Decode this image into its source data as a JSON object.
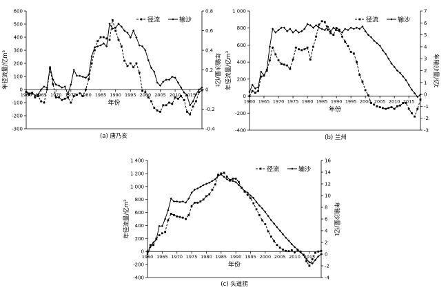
{
  "chart_data": [
    {
      "type": "line",
      "caption": "(a) 唐乃亥",
      "xlabel": "年份",
      "ylabel_left": "年径流量/亿m³",
      "ylabel_right": "年输沙量/亿t",
      "x_ticks": [
        "1960",
        "1965",
        "1970",
        "1975",
        "1980",
        "1985",
        "1990",
        "1995",
        "2000",
        "2005",
        "2010",
        "2015"
      ],
      "x_range": [
        1960,
        2019
      ],
      "ylim_left": [
        -300,
        600
      ],
      "yticks_left": [
        "-300",
        "-200",
        "-100",
        "0",
        "100",
        "200",
        "300",
        "400",
        "500",
        "600"
      ],
      "ylim_right": [
        -0.4,
        0.8
      ],
      "yticks_right": [
        "-0.4",
        "-0.2",
        "0",
        "0.2",
        "0.4",
        "0.6",
        "0.8"
      ],
      "legend": [
        "径流",
        "输沙"
      ],
      "legend_position": "top-right",
      "series": [
        {
          "name": "径流",
          "axis": "left",
          "style": "dashed-square",
          "x": [
            1960,
            1961,
            1962,
            1963,
            1964,
            1965,
            1966,
            1967,
            1968,
            1969,
            1970,
            1971,
            1972,
            1973,
            1974,
            1975,
            1976,
            1977,
            1978,
            1979,
            1980,
            1981,
            1982,
            1983,
            1984,
            1985,
            1986,
            1987,
            1988,
            1989,
            1990,
            1991,
            1992,
            1993,
            1994,
            1995,
            1996,
            1997,
            1998,
            1999,
            2000,
            2001,
            2002,
            2003,
            2004,
            2005,
            2006,
            2007,
            2008,
            2009,
            2010,
            2011,
            2012,
            2013,
            2014,
            2015,
            2016,
            2017,
            2018,
            2019
          ],
          "y": [
            -20,
            -40,
            -30,
            -60,
            -50,
            -90,
            -100,
            0,
            160,
            40,
            -60,
            -60,
            -80,
            -70,
            -60,
            -100,
            -50,
            -40,
            -30,
            -50,
            0,
            80,
            200,
            300,
            370,
            400,
            400,
            390,
            380,
            530,
            450,
            380,
            330,
            220,
            180,
            200,
            170,
            200,
            130,
            -10,
            -20,
            -60,
            -90,
            -140,
            -160,
            -170,
            -120,
            -120,
            -100,
            -110,
            -60,
            -70,
            -50,
            -80,
            -170,
            -190,
            -130,
            -90,
            -20,
            -5
          ]
        },
        {
          "name": "输沙",
          "axis": "right",
          "style": "solid-diamond",
          "x": [
            1960,
            1961,
            1962,
            1963,
            1964,
            1965,
            1966,
            1967,
            1968,
            1969,
            1970,
            1971,
            1972,
            1973,
            1974,
            1975,
            1976,
            1977,
            1978,
            1979,
            1980,
            1981,
            1982,
            1983,
            1984,
            1985,
            1986,
            1987,
            1988,
            1989,
            1990,
            1991,
            1992,
            1993,
            1994,
            1995,
            1996,
            1997,
            1998,
            1999,
            2000,
            2001,
            2002,
            2003,
            2004,
            2005,
            2006,
            2007,
            2008,
            2009,
            2010,
            2011,
            2012,
            2013,
            2014,
            2015,
            2016,
            2017,
            2018,
            2019
          ],
          "y": [
            -0.02,
            -0.04,
            -0.03,
            -0.06,
            -0.05,
            0,
            0.03,
            0.02,
            0.23,
            0.1,
            0.05,
            0.04,
            0.02,
            0.03,
            -0.05,
            0.05,
            0.2,
            0.14,
            0.14,
            0.13,
            0.12,
            0.15,
            0.34,
            0.43,
            0.44,
            0.45,
            0.47,
            0.44,
            0.67,
            0.62,
            0.63,
            0.67,
            0.64,
            0.6,
            0.58,
            0.53,
            0.6,
            0.53,
            0.45,
            0.44,
            0.4,
            0.3,
            0.22,
            0.18,
            0.07,
            0.04,
            0.08,
            0.1,
            0.1,
            0.13,
            0.12,
            0.07,
            0.02,
            -0.03,
            -0.06,
            -0.16,
            -0.12,
            -0.05,
            0,
            0.02
          ]
        }
      ]
    },
    {
      "type": "line",
      "caption": "(b) 兰州",
      "xlabel": "年份",
      "ylabel_left": "年径流量/亿m³",
      "ylabel_right": "年输沙量/亿t",
      "x_ticks": [
        "1960",
        "1965",
        "1970",
        "1975",
        "1980",
        "1985",
        "1990",
        "1995",
        "2000",
        "2005",
        "2010",
        "2015"
      ],
      "x_range": [
        1960,
        2019
      ],
      "ylim_left": [
        -400,
        1000
      ],
      "yticks_left": [
        "-400",
        "-200",
        "0",
        "200",
        "400",
        "600",
        "800",
        "1 000"
      ],
      "ylim_right": [
        -3,
        7
      ],
      "yticks_right": [
        "-3",
        "-2",
        "-1",
        "0",
        "1",
        "2",
        "3",
        "4",
        "5",
        "6",
        "7"
      ],
      "legend": [
        "径流",
        "输沙"
      ],
      "legend_position": "top-right",
      "series": [
        {
          "name": "径流",
          "axis": "left",
          "style": "dashed-square",
          "x": [
            1960,
            1961,
            1962,
            1963,
            1964,
            1965,
            1966,
            1967,
            1968,
            1969,
            1970,
            1971,
            1972,
            1973,
            1974,
            1975,
            1976,
            1977,
            1978,
            1979,
            1980,
            1981,
            1982,
            1983,
            1984,
            1985,
            1986,
            1987,
            1988,
            1989,
            1990,
            1991,
            1992,
            1993,
            1994,
            1995,
            1996,
            1997,
            1998,
            1999,
            2000,
            2001,
            2002,
            2003,
            2004,
            2005,
            2006,
            2007,
            2008,
            2009,
            2010,
            2011,
            2012,
            2013,
            2014,
            2015,
            2016,
            2017,
            2018,
            2019
          ],
          "y": [
            0,
            60,
            40,
            60,
            230,
            240,
            300,
            420,
            570,
            490,
            420,
            380,
            370,
            360,
            320,
            430,
            570,
            550,
            540,
            550,
            570,
            430,
            580,
            700,
            840,
            880,
            870,
            780,
            740,
            720,
            800,
            780,
            700,
            640,
            590,
            520,
            500,
            400,
            250,
            170,
            70,
            10,
            -80,
            -100,
            -120,
            -130,
            -140,
            -150,
            -140,
            -130,
            -150,
            -120,
            -110,
            -80,
            -80,
            -150,
            -200,
            -240,
            -150,
            -40
          ]
        },
        {
          "name": "输沙",
          "axis": "right",
          "style": "solid-diamond",
          "x": [
            1960,
            1961,
            1962,
            1963,
            1964,
            1965,
            1966,
            1967,
            1968,
            1969,
            1970,
            1971,
            1972,
            1973,
            1974,
            1975,
            1976,
            1977,
            1978,
            1979,
            1980,
            1981,
            1982,
            1983,
            1984,
            1985,
            1986,
            1987,
            1988,
            1989,
            1990,
            1991,
            1992,
            1993,
            1994,
            1995,
            1996,
            1997,
            1998,
            1999,
            2000,
            2001,
            2002,
            2003,
            2004,
            2005,
            2006,
            2007,
            2008,
            2009,
            2010,
            2011,
            2012,
            2013,
            2014,
            2015,
            2016,
            2017,
            2018,
            2019
          ],
          "y": [
            0.2,
            0.8,
            0.5,
            0.6,
            1.9,
            1.6,
            2.1,
            4.0,
            5.5,
            5.2,
            5.4,
            5.6,
            5.6,
            5.3,
            5.5,
            5.2,
            5.4,
            5.2,
            5.3,
            5.5,
            5.9,
            5.8,
            5.6,
            5.8,
            5.6,
            5.5,
            5.4,
            5.7,
            5.3,
            5.6,
            5.4,
            5.3,
            5.2,
            5.5,
            5.4,
            5.6,
            5.5,
            5.6,
            5.5,
            5.7,
            5.3,
            5.0,
            4.8,
            4.5,
            4.3,
            4.1,
            3.7,
            3.4,
            3.0,
            2.6,
            2.3,
            2.0,
            1.8,
            1.5,
            1.2,
            0.8,
            0.4,
            0.1,
            -0.2,
            0
          ]
        }
      ]
    },
    {
      "type": "line",
      "caption": "(c) 头道拐",
      "xlabel": "年份",
      "ylabel_left": "年径流量/亿m³",
      "ylabel_right": "年输沙量/亿t",
      "x_ticks": [
        "1960",
        "1965",
        "1970",
        "1975",
        "1980",
        "1985",
        "1990",
        "1995",
        "2000",
        "2005",
        "2010",
        "2015"
      ],
      "x_range": [
        1960,
        2019
      ],
      "ylim_left": [
        -400,
        1400
      ],
      "yticks_left": [
        "-400",
        "-200",
        "0",
        "200",
        "400",
        "600",
        "800",
        "1 000",
        "1 200",
        "1 400"
      ],
      "ylim_right": [
        -4,
        16
      ],
      "yticks_right": [
        "-4",
        "-2",
        "0",
        "2",
        "4",
        "6",
        "8",
        "10",
        "12",
        "14",
        "16"
      ],
      "legend": [
        "径流",
        "输沙"
      ],
      "legend_position": "top-right",
      "series": [
        {
          "name": "径流",
          "axis": "left",
          "style": "dashed-square",
          "x": [
            1960,
            1961,
            1962,
            1963,
            1964,
            1965,
            1966,
            1967,
            1968,
            1969,
            1970,
            1971,
            1972,
            1973,
            1974,
            1975,
            1976,
            1977,
            1978,
            1979,
            1980,
            1981,
            1982,
            1983,
            1984,
            1985,
            1986,
            1987,
            1988,
            1989,
            1990,
            1991,
            1992,
            1993,
            1994,
            1995,
            1996,
            1997,
            1998,
            1999,
            2000,
            2001,
            2002,
            2003,
            2004,
            2005,
            2006,
            2007,
            2008,
            2009,
            2010,
            2011,
            2012,
            2013,
            2014,
            2015,
            2016,
            2017,
            2018,
            2019
          ],
          "y": [
            0,
            100,
            100,
            200,
            250,
            280,
            300,
            480,
            580,
            560,
            540,
            530,
            520,
            500,
            560,
            700,
            750,
            750,
            770,
            800,
            850,
            880,
            950,
            1030,
            1180,
            1200,
            1210,
            1150,
            1100,
            1120,
            1120,
            1070,
            980,
            920,
            870,
            820,
            740,
            650,
            560,
            480,
            420,
            310,
            230,
            160,
            100,
            60,
            30,
            10,
            5,
            20,
            -10,
            20,
            0,
            -50,
            -150,
            -220,
            -120,
            -20,
            0,
            10
          ]
        },
        {
          "name": "输沙",
          "axis": "right",
          "style": "solid-diamond",
          "x": [
            1960,
            1961,
            1962,
            1963,
            1964,
            1965,
            1966,
            1967,
            1968,
            1969,
            1970,
            1971,
            1972,
            1973,
            1974,
            1975,
            1976,
            1977,
            1978,
            1979,
            1980,
            1981,
            1982,
            1983,
            1984,
            1985,
            1986,
            1987,
            1988,
            1989,
            1990,
            1991,
            1992,
            1993,
            1994,
            1995,
            1996,
            1997,
            1998,
            1999,
            2000,
            2001,
            2002,
            2003,
            2004,
            2005,
            2006,
            2007,
            2008,
            2009,
            2010,
            2011,
            2012,
            2013,
            2014,
            2015,
            2016,
            2017,
            2018,
            2019
          ],
          "y": [
            0,
            1.2,
            2.0,
            2.5,
            4.8,
            4.8,
            6.0,
            7.5,
            9.5,
            9.0,
            9.0,
            8.9,
            9.0,
            8.8,
            9.5,
            10.5,
            11.0,
            11.2,
            11.5,
            11.8,
            12.0,
            12.2,
            12.5,
            12.8,
            13.4,
            13.6,
            13.2,
            12.8,
            12.5,
            12.5,
            12.3,
            11.8,
            11.3,
            10.8,
            10.5,
            10.0,
            9.6,
            8.9,
            8.3,
            7.8,
            7.2,
            6.5,
            5.8,
            5.2,
            4.6,
            4.0,
            3.4,
            2.8,
            2.3,
            1.7,
            1.2,
            0.8,
            0.3,
            -0.2,
            -0.8,
            -1.4,
            -1.6,
            -1.0,
            -0.4,
            0
          ]
        }
      ]
    }
  ]
}
